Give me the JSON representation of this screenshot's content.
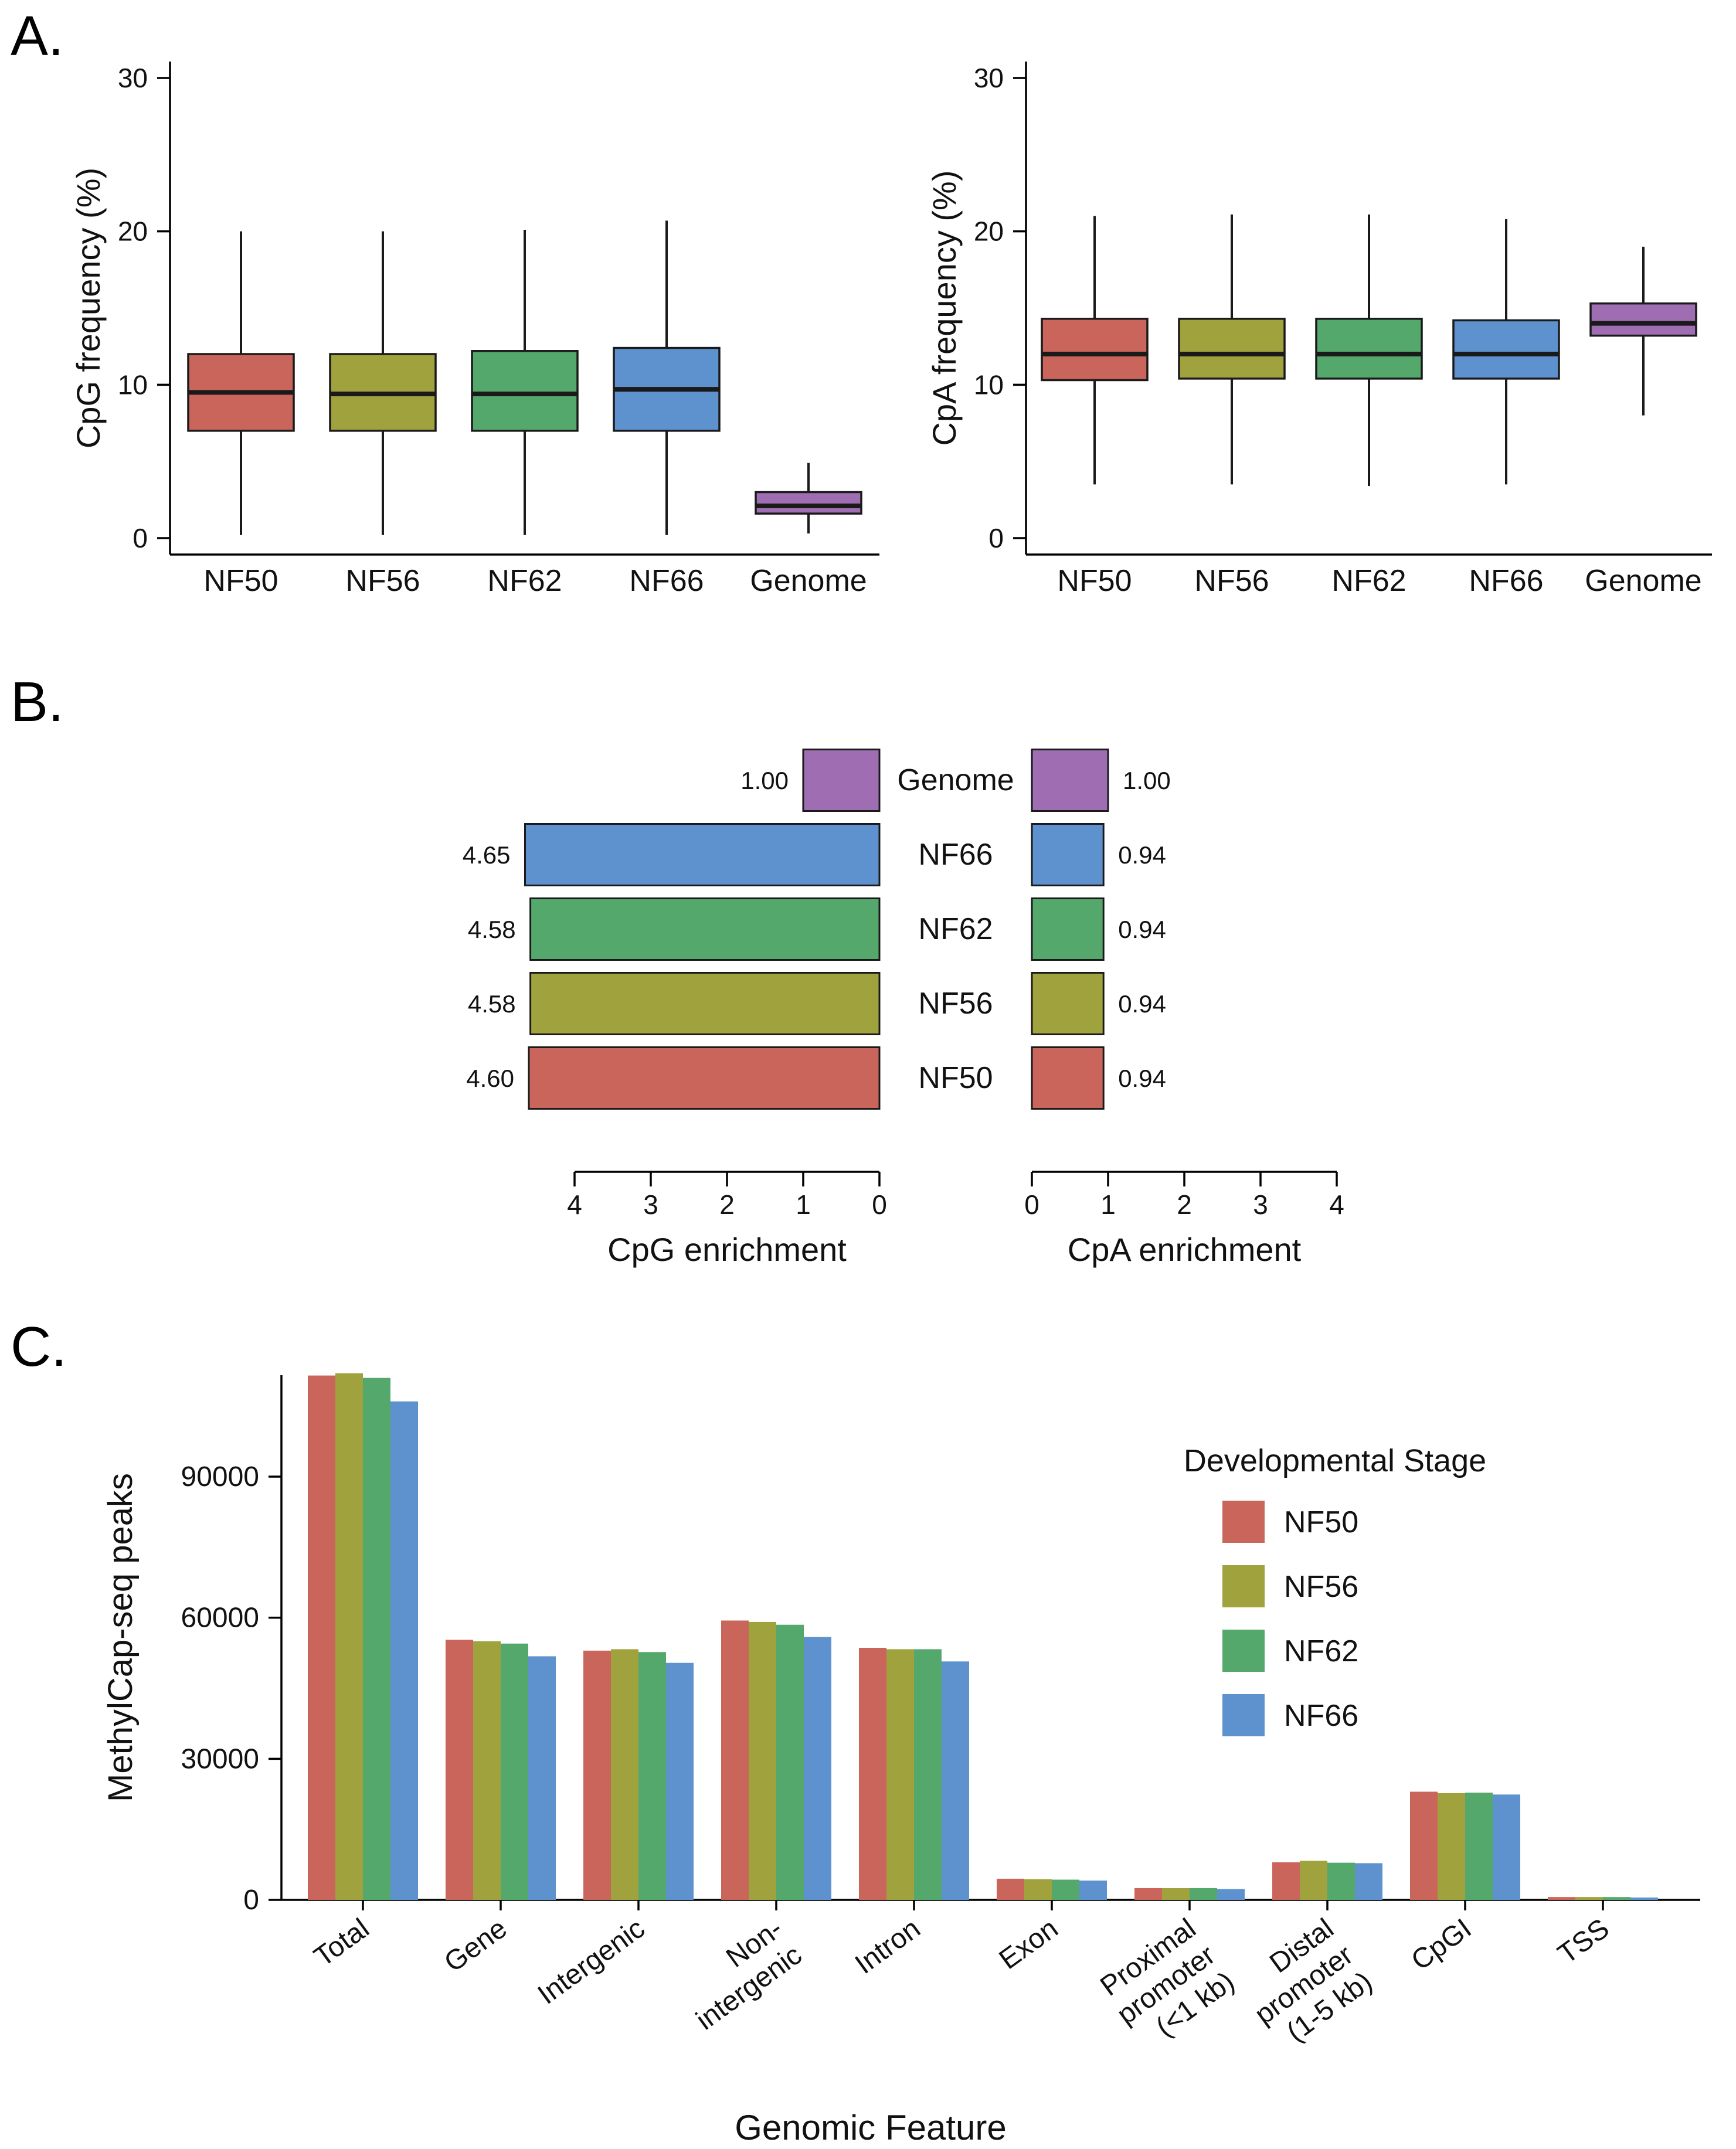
{
  "figure": {
    "panel_a_label": "A.",
    "panel_b_label": "B.",
    "panel_c_label": "C."
  },
  "colors": {
    "NF50": "#C9655A",
    "NF56": "#A0A23D",
    "NF62": "#55A86C",
    "NF66": "#5D92CF",
    "Genome": "#9F6DB2"
  },
  "chart_data": [
    {
      "id": "cpg-freq-boxplot",
      "type": "boxplot",
      "ylabel": "CpG frequency (%)",
      "ylim": [
        0,
        30
      ],
      "yticks": [
        0,
        10,
        20,
        30
      ],
      "categories": [
        "NF50",
        "NF56",
        "NF62",
        "NF66",
        "Genome"
      ],
      "boxes": [
        {
          "category": "NF50",
          "whisker_low": 0.2,
          "q1": 7.0,
          "median": 9.5,
          "q3": 12.0,
          "whisker_high": 20.0
        },
        {
          "category": "NF56",
          "whisker_low": 0.2,
          "q1": 7.0,
          "median": 9.4,
          "q3": 12.0,
          "whisker_high": 20.0
        },
        {
          "category": "NF62",
          "whisker_low": 0.2,
          "q1": 7.0,
          "median": 9.4,
          "q3": 12.2,
          "whisker_high": 20.1
        },
        {
          "category": "NF66",
          "whisker_low": 0.2,
          "q1": 7.0,
          "median": 9.7,
          "q3": 12.4,
          "whisker_high": 20.7
        },
        {
          "category": "Genome",
          "whisker_low": 0.3,
          "q1": 1.6,
          "median": 2.1,
          "q3": 3.0,
          "whisker_high": 4.9
        }
      ]
    },
    {
      "id": "cpa-freq-boxplot",
      "type": "boxplot",
      "ylabel": "CpA frequency (%)",
      "ylim": [
        0,
        30
      ],
      "yticks": [
        0,
        10,
        20,
        30
      ],
      "categories": [
        "NF50",
        "NF56",
        "NF62",
        "NF66",
        "Genome"
      ],
      "boxes": [
        {
          "category": "NF50",
          "whisker_low": 3.5,
          "q1": 10.3,
          "median": 12.0,
          "q3": 14.3,
          "whisker_high": 21.0
        },
        {
          "category": "NF56",
          "whisker_low": 3.5,
          "q1": 10.4,
          "median": 12.0,
          "q3": 14.3,
          "whisker_high": 21.1
        },
        {
          "category": "NF62",
          "whisker_low": 3.4,
          "q1": 10.4,
          "median": 12.0,
          "q3": 14.3,
          "whisker_high": 21.1
        },
        {
          "category": "NF66",
          "whisker_low": 3.5,
          "q1": 10.4,
          "median": 12.0,
          "q3": 14.2,
          "whisker_high": 20.8
        },
        {
          "category": "Genome",
          "whisker_low": 8.0,
          "q1": 13.2,
          "median": 14.0,
          "q3": 15.3,
          "whisker_high": 19.0
        }
      ]
    },
    {
      "id": "cpg-enrichment-bars",
      "type": "bar-horizontal",
      "xlabel": "CpG enrichment",
      "xlim": [
        0,
        4
      ],
      "xticks": [
        0,
        1,
        2,
        3,
        4
      ],
      "reversed": true,
      "categories": [
        "Genome",
        "NF66",
        "NF62",
        "NF56",
        "NF50"
      ],
      "values": [
        1.0,
        4.65,
        4.58,
        4.58,
        4.6
      ],
      "labels": [
        "1.00",
        "4.65",
        "4.58",
        "4.58",
        "4.60"
      ]
    },
    {
      "id": "cpa-enrichment-bars",
      "type": "bar-horizontal",
      "xlabel": "CpA enrichment",
      "xlim": [
        0,
        4
      ],
      "xticks": [
        0,
        1,
        2,
        3,
        4
      ],
      "reversed": false,
      "categories": [
        "Genome",
        "NF66",
        "NF62",
        "NF56",
        "NF50"
      ],
      "values": [
        1.0,
        0.94,
        0.94,
        0.94,
        0.94
      ],
      "labels": [
        "1.00",
        "0.94",
        "0.94",
        "0.94",
        "0.94"
      ]
    },
    {
      "id": "methylcap-peaks-bars",
      "type": "bar",
      "ylabel": "MethylCap-seq peaks",
      "xlabel": "Genomic Feature",
      "ylim": [
        0,
        115000
      ],
      "yticks": [
        0,
        30000,
        60000,
        90000
      ],
      "legend_title": "Developmental Stage",
      "legend_entries": [
        "NF50",
        "NF56",
        "NF62",
        "NF66"
      ],
      "categories": [
        "Total",
        "Gene",
        "Intergenic",
        "Non-\nintergenic",
        "Intron",
        "Exon",
        "Proximal\npromoter\n(<1 kb)",
        "Distal\npromoter\n(1-5 kb)",
        "CpGI",
        "TSS"
      ],
      "series": [
        {
          "name": "NF50",
          "values": [
            111500,
            55300,
            53000,
            59400,
            53600,
            4500,
            2500,
            8000,
            23000,
            600
          ]
        },
        {
          "name": "NF56",
          "values": [
            112000,
            55000,
            53300,
            59100,
            53300,
            4400,
            2500,
            8300,
            22700,
            600
          ]
        },
        {
          "name": "NF62",
          "values": [
            111000,
            54500,
            52700,
            58500,
            53300,
            4300,
            2500,
            7900,
            22800,
            600
          ]
        },
        {
          "name": "NF66",
          "values": [
            106000,
            51800,
            50400,
            55900,
            50700,
            4100,
            2300,
            7800,
            22400,
            500
          ]
        }
      ]
    }
  ]
}
